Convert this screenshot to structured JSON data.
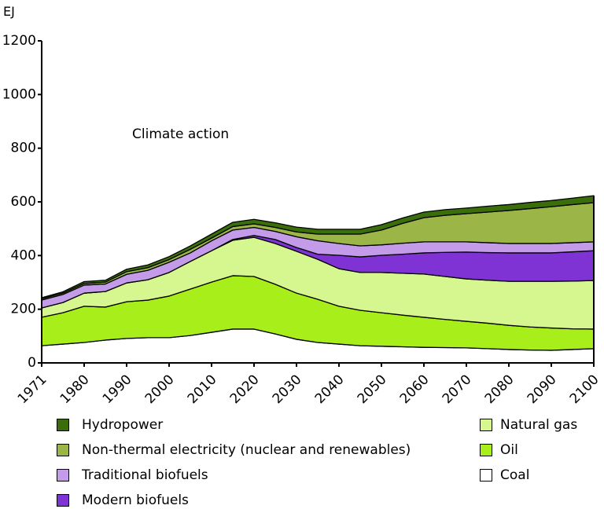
{
  "chart_data": {
    "type": "area",
    "stacked": true,
    "ylabel": "EJ",
    "annotation": "Climate action",
    "ylim": [
      0,
      1200
    ],
    "yticks": [
      0,
      200,
      400,
      600,
      800,
      1000,
      1200
    ],
    "xticks": [
      "1971",
      "1980",
      "1990",
      "2000",
      "2010",
      "2020",
      "2030",
      "2040",
      "2050",
      "2060",
      "2070",
      "2080",
      "2090",
      "2100"
    ],
    "x": [
      1971,
      1975,
      1980,
      1985,
      1990,
      1995,
      2000,
      2005,
      2010,
      2015,
      2020,
      2025,
      2030,
      2035,
      2040,
      2045,
      2050,
      2055,
      2060,
      2065,
      2070,
      2075,
      2080,
      2085,
      2090,
      2095,
      2100
    ],
    "series": [
      {
        "name": "Coal",
        "color": "#ffffff",
        "values": [
          64,
          70,
          76,
          85,
          91,
          94,
          94,
          102,
          114,
          126,
          126,
          108,
          88,
          76,
          70,
          64,
          62,
          60,
          58,
          57,
          56,
          53,
          50,
          48,
          47,
          50,
          53
        ]
      },
      {
        "name": "Oil",
        "color": "#a8ee1a",
        "values": [
          106,
          117,
          135,
          123,
          137,
          140,
          155,
          173,
          187,
          199,
          196,
          185,
          172,
          161,
          141,
          132,
          125,
          118,
          112,
          105,
          99,
          95,
          90,
          86,
          83,
          77,
          73
        ]
      },
      {
        "name": "Natural gas",
        "color": "#d6f68f",
        "values": [
          35,
          38,
          49,
          58,
          70,
          76,
          88,
          103,
          117,
          132,
          146,
          152,
          156,
          149,
          140,
          141,
          150,
          156,
          161,
          160,
          158,
          160,
          164,
          170,
          174,
          178,
          181
        ]
      },
      {
        "name": "Modern biofuels",
        "color": "#8033d4",
        "values": [
          0,
          0,
          0,
          0,
          0,
          0,
          0,
          0,
          0,
          3,
          7,
          15,
          14,
          19,
          50,
          58,
          64,
          71,
          79,
          90,
          100,
          103,
          106,
          106,
          106,
          109,
          111
        ]
      },
      {
        "name": "Traditional biofuels",
        "color": "#c39be8",
        "values": [
          29,
          30,
          30,
          28,
          32,
          35,
          38,
          32,
          37,
          35,
          30,
          30,
          40,
          50,
          44,
          41,
          39,
          41,
          41,
          39,
          38,
          37,
          35,
          35,
          35,
          34,
          33
        ]
      },
      {
        "name": "Non-thermal electricity (nuclear and renewables)",
        "color": "#9bb547",
        "values": [
          5,
          5,
          6,
          7,
          10,
          10,
          10,
          13,
          10,
          13,
          13,
          15,
          18,
          25,
          35,
          44,
          55,
          74,
          90,
          99,
          105,
          114,
          123,
          130,
          137,
          142,
          146
        ]
      },
      {
        "name": "Hydropower",
        "color": "#3a6e0a",
        "values": [
          4,
          5,
          7,
          7,
          9,
          10,
          11,
          13,
          15,
          16,
          17,
          17,
          18,
          18,
          18,
          18,
          20,
          20,
          21,
          21,
          21,
          22,
          22,
          23,
          23,
          24,
          26
        ]
      }
    ]
  },
  "legend": {
    "left": [
      "Hydropower",
      "Non-thermal electricity (nuclear and renewables)",
      "Traditional biofuels",
      "Modern biofuels"
    ],
    "right": [
      "Natural gas",
      "Oil",
      "Coal"
    ]
  }
}
